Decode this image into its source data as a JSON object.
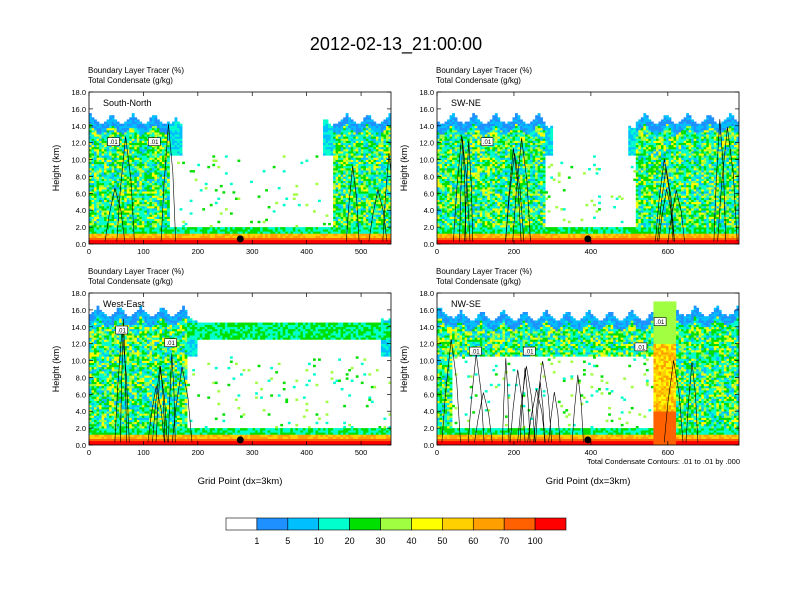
{
  "figure_title": "2012-02-13_21:00:00",
  "colorbar": {
    "colors": [
      "#ffffff",
      "#1e90ff",
      "#00bfff",
      "#00ffcc",
      "#00e000",
      "#a0ff40",
      "#ffff00",
      "#ffd000",
      "#ffa000",
      "#ff6000",
      "#ff0000"
    ],
    "labels": [
      "1",
      "5",
      "10",
      "20",
      "30",
      "40",
      "50",
      "60",
      "70",
      "100"
    ]
  },
  "contour_info": "Total Condensate Contours: .01 to .01 by .000",
  "chart_data": [
    {
      "type": "heatmap",
      "panel": "South-North",
      "title_lines": [
        "Boundary Layer Tracer    (%)",
        "Total Condensate    (g/kg)"
      ],
      "ylabel": "Height (km)",
      "xlabel": "",
      "ylim": [
        0,
        18
      ],
      "yticks": [
        "0.0",
        "2.0",
        "4.0",
        "6.0",
        "8.0",
        "10.0",
        "12.0",
        "14.0",
        "16.0",
        "18.0"
      ],
      "yticks_values": [
        0,
        2,
        4,
        6,
        8,
        10,
        12,
        14,
        16,
        18
      ],
      "xlim": [
        0,
        555
      ],
      "xticks": [
        "0",
        "100",
        "200",
        "300",
        "400",
        "500"
      ],
      "xticks_values": [
        0,
        100,
        200,
        300,
        400,
        500
      ],
      "contour_labels": [
        ".01",
        ".01"
      ],
      "contour_label_positions": [
        [
          45,
          12.0
        ],
        [
          120,
          12.0
        ]
      ],
      "cloud_top_km": 15.5,
      "clear_gap_x": [
        150,
        450
      ],
      "marker_x": 278
    },
    {
      "type": "heatmap",
      "panel": "SW-NE",
      "title_lines": [
        "Boundary Layer Tracer    (%)",
        "Total Condensate    (g/kg)"
      ],
      "ylabel": "Height (km)",
      "xlabel": "",
      "ylim": [
        0,
        18
      ],
      "yticks": [
        "0.0",
        "2.0",
        "4.0",
        "6.0",
        "8.0",
        "10.0",
        "12.0",
        "14.0",
        "16.0",
        "18.0"
      ],
      "yticks_values": [
        0,
        2,
        4,
        6,
        8,
        10,
        12,
        14,
        16,
        18
      ],
      "xlim": [
        0,
        785
      ],
      "xticks": [
        "0",
        "200",
        "400",
        "600"
      ],
      "xticks_values": [
        0,
        200,
        400,
        600
      ],
      "contour_labels": [
        ".01"
      ],
      "contour_label_positions": [
        [
          130,
          12.0
        ]
      ],
      "cloud_top_km": 15.5,
      "clear_gap_x": [
        280,
        520
      ],
      "marker_x": 392
    },
    {
      "type": "heatmap",
      "panel": "West-East",
      "title_lines": [
        "Boundary Layer Tracer    (%)",
        "Total Condensate    (g/kg)"
      ],
      "ylabel": "Height (km)",
      "xlabel": "Grid Point (dx=3km)",
      "ylim": [
        0,
        18
      ],
      "yticks": [
        "0.0",
        "2.0",
        "4.0",
        "6.0",
        "8.0",
        "10.0",
        "12.0",
        "14.0",
        "16.0",
        "18.0"
      ],
      "yticks_values": [
        0,
        2,
        4,
        6,
        8,
        10,
        12,
        14,
        16,
        18
      ],
      "xlim": [
        0,
        555
      ],
      "xticks": [
        "0",
        "100",
        "200",
        "300",
        "400",
        "500"
      ],
      "xticks_values": [
        0,
        100,
        200,
        300,
        400,
        500
      ],
      "contour_labels": [
        ".01",
        ".01"
      ],
      "contour_label_positions": [
        [
          60,
          13.5
        ],
        [
          150,
          12.0
        ]
      ],
      "cloud_top_km": 16.5,
      "clear_gap_x": [
        180,
        555
      ],
      "marker_x": 278
    },
    {
      "type": "heatmap",
      "panel": "NW-SE",
      "title_lines": [
        "Boundary Layer Tracer    (%)",
        "Total Condensate    (g/kg)"
      ],
      "ylabel": "Height (km)",
      "xlabel": "Grid Point (dx=3km)",
      "ylim": [
        0,
        18
      ],
      "yticks": [
        "0.0",
        "2.0",
        "4.0",
        "6.0",
        "8.0",
        "10.0",
        "12.0",
        "14.0",
        "16.0",
        "18.0"
      ],
      "yticks_values": [
        0,
        2,
        4,
        6,
        8,
        10,
        12,
        14,
        16,
        18
      ],
      "xlim": [
        0,
        785
      ],
      "xticks": [
        "0",
        "200",
        "400",
        "600"
      ],
      "xticks_values": [
        0,
        200,
        400,
        600
      ],
      "contour_labels": [
        ".01",
        ".01",
        ".01",
        ".01"
      ],
      "contour_label_positions": [
        [
          100,
          11.0
        ],
        [
          240,
          11.0
        ],
        [
          530,
          11.5
        ],
        [
          580,
          14.5
        ]
      ],
      "cloud_top_km": 16.5,
      "clear_gap_x": [
        40,
        560
      ],
      "marker_x": 392
    }
  ]
}
